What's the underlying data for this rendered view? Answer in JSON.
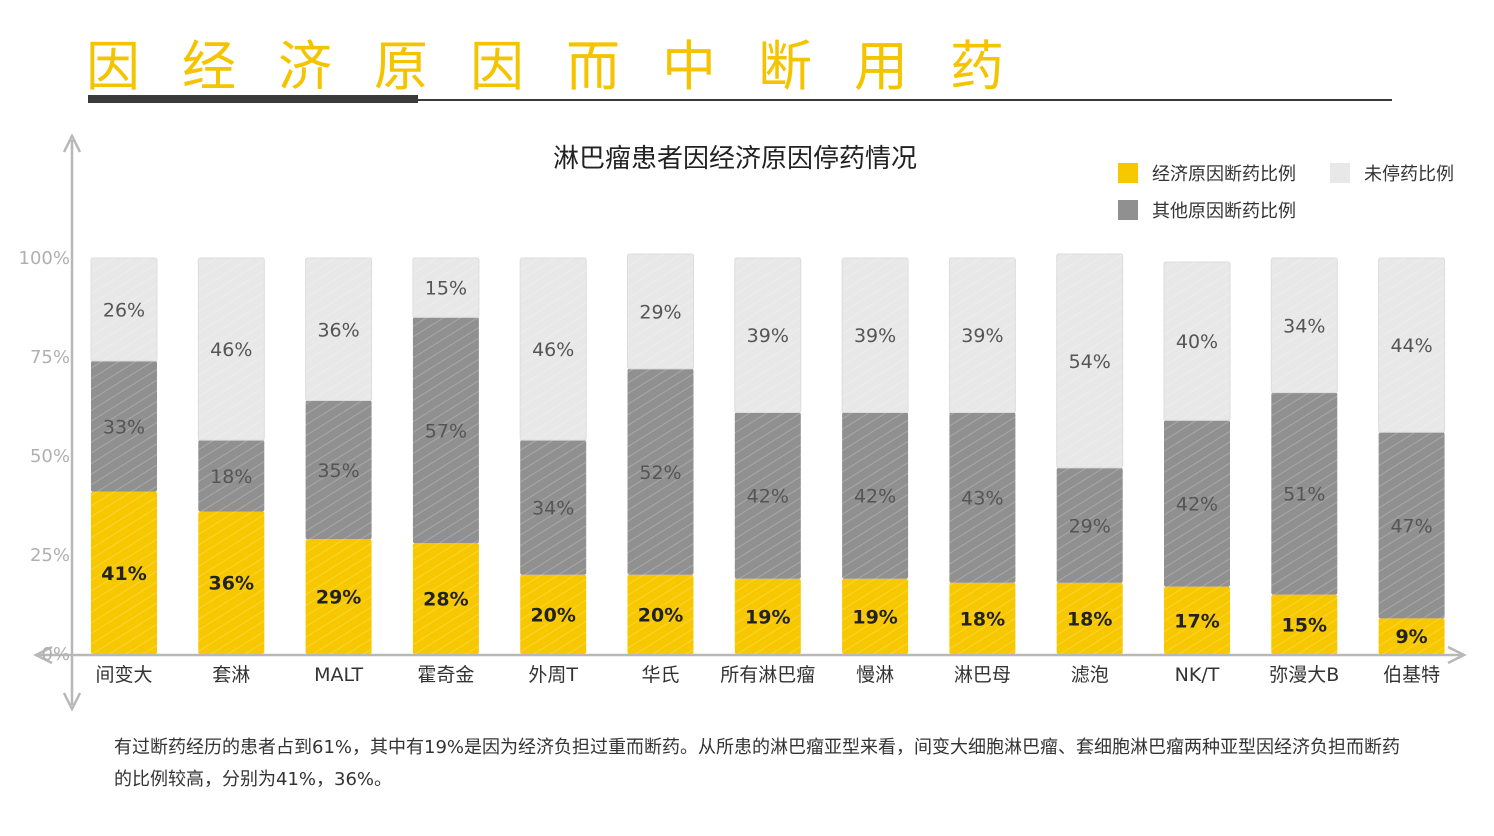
{
  "page": {
    "title": "因经济原因而中断用药",
    "footnote": "有过断药经历的患者占到61%，其中有19%是因为经济负担过重而断药。从所患的淋巴瘤亚型来看，间变大细胞淋巴瘤、套细胞淋巴瘤两种亚型因经济负担而断药的比例较高，分别为41%，36%。"
  },
  "colors": {
    "accent": "#f5c400",
    "economic": "#f7c800",
    "other": "#909090",
    "none": "#e8e8e8",
    "axis": "#b8b8b8"
  },
  "legend": {
    "economic": "经济原因断药比例",
    "none": "未停药比例",
    "other": "其他原因断药比例"
  },
  "chart_data": {
    "type": "bar",
    "stacked": true,
    "title": "淋巴瘤患者因经济原因停药情况",
    "yticks": [
      "0%",
      "25%",
      "50%",
      "75%",
      "100%"
    ],
    "ylim": [
      0,
      100
    ],
    "legend_position": "top-right",
    "categories": [
      "间变大",
      "套淋",
      "MALT",
      "霍奇金",
      "外周T",
      "华氏",
      "所有淋巴瘤",
      "慢淋",
      "淋巴母",
      "滤泡",
      "NK/T",
      "弥漫大B",
      "伯基特"
    ],
    "series": [
      {
        "name": "经济原因断药比例",
        "key": "economic",
        "values": [
          41,
          36,
          29,
          28,
          20,
          20,
          19,
          19,
          18,
          18,
          17,
          15,
          9
        ]
      },
      {
        "name": "其他原因断药比例",
        "key": "other",
        "values": [
          33,
          18,
          35,
          57,
          34,
          52,
          42,
          42,
          43,
          29,
          42,
          51,
          47
        ]
      },
      {
        "name": "未停药比例",
        "key": "none",
        "values": [
          26,
          46,
          36,
          15,
          46,
          29,
          39,
          39,
          39,
          54,
          40,
          34,
          44
        ]
      }
    ]
  }
}
